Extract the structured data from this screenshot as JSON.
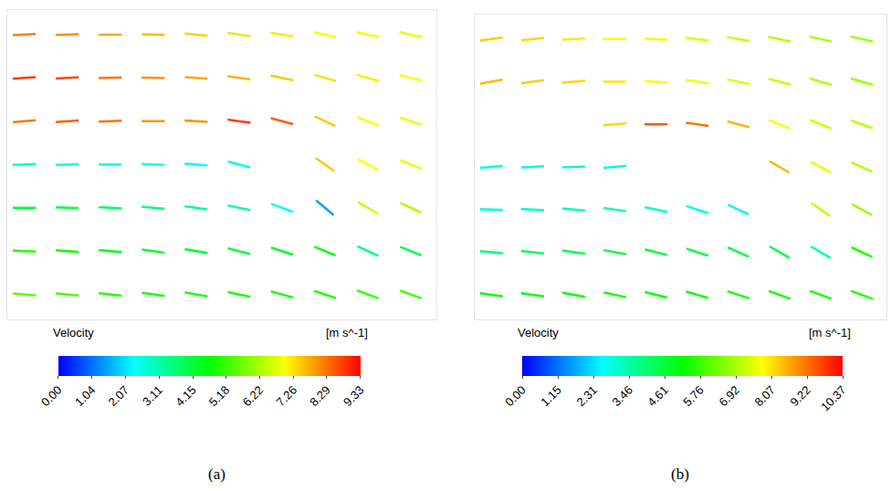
{
  "chart_data": [
    {
      "type": "vector",
      "title": "(a)",
      "tick_labels": false,
      "xlim": [
        0,
        100
      ],
      "ylim": [
        0,
        100
      ],
      "x": [
        4,
        14,
        24,
        34,
        44,
        54,
        64,
        74,
        84,
        94
      ],
      "y": [
        8,
        22,
        36,
        50,
        64,
        78,
        92
      ],
      "speed": [
        [
          5.5,
          5.3,
          5,
          4.9,
          4.8,
          4.8,
          4.9,
          5,
          5.2,
          5.3
        ],
        [
          5,
          4.8,
          4.6,
          4.4,
          4.3,
          4.2,
          4.3,
          4.5,
          3.5,
          4
        ],
        [
          4.2,
          4,
          3.8,
          3.5,
          3.3,
          3,
          2.5,
          1.5,
          6.5,
          6.3
        ],
        [
          2.8,
          2.7,
          2.6,
          2.5,
          2.4,
          2.3,
          null,
          7.5,
          7,
          6.8
        ],
        [
          8.3,
          8.5,
          8.3,
          8,
          8,
          8.8,
          8.5,
          7.5,
          7,
          6.8
        ],
        [
          8.8,
          8.7,
          8.3,
          8,
          7.8,
          7.7,
          7.5,
          7.3,
          7.2,
          7
        ],
        [
          8.2,
          8,
          7.8,
          7.6,
          7.4,
          7.3,
          7.2,
          7,
          6.9,
          6.8
        ]
      ],
      "angle": [
        [
          -5,
          -5,
          -6,
          -8,
          -10,
          -12,
          -15,
          -18,
          -20,
          -20
        ],
        [
          -3,
          -4,
          -5,
          -8,
          -10,
          -14,
          -18,
          -22,
          -25,
          -22
        ],
        [
          0,
          -2,
          -3,
          -5,
          -8,
          -12,
          -20,
          -40,
          -30,
          -25
        ],
        [
          2,
          2,
          0,
          -2,
          -5,
          -15,
          null,
          -35,
          -28,
          -22
        ],
        [
          5,
          4,
          2,
          0,
          -3,
          -8,
          -15,
          -25,
          -22,
          -18
        ],
        [
          4,
          3,
          1,
          -1,
          -4,
          -8,
          -12,
          -16,
          -16,
          -14
        ],
        [
          3,
          2,
          0,
          -2,
          -5,
          -8,
          -10,
          -12,
          -12,
          -12
        ]
      ],
      "bodies": [
        {
          "x": [
            54.6,
            60.4,
            66.7,
            71.9,
            76,
            78.8,
            79.2,
            77.1,
            74,
            69.8,
            64.6,
            59.4,
            55.8
          ],
          "y": [
            56.6,
            57.1,
            54.9,
            50,
            42.9,
            34.3,
            25.1,
            32.9,
            40,
            45.1,
            48.6,
            51.4,
            54.3
          ]
        }
      ],
      "colorbar": {
        "title": "Velocity",
        "unit": "[m s^-1]",
        "range": [
          0,
          9.33
        ],
        "ticks": [
          {
            "value": 0,
            "label": "0.00"
          },
          {
            "value": 1.04,
            "label": "1.04"
          },
          {
            "value": 2.07,
            "label": "2.07"
          },
          {
            "value": 3.11,
            "label": "3.11"
          },
          {
            "value": 4.15,
            "label": "4.15"
          },
          {
            "value": 5.18,
            "label": "5.18"
          },
          {
            "value": 6.22,
            "label": "6.22"
          },
          {
            "value": 7.26,
            "label": "7.26"
          },
          {
            "value": 8.29,
            "label": "8.29"
          },
          {
            "value": 9.33,
            "label": "9.33"
          }
        ]
      }
    },
    {
      "type": "vector",
      "title": "(b)",
      "tick_labels": false,
      "xlim": [
        0,
        100
      ],
      "ylim": [
        0,
        100
      ],
      "x": [
        4,
        14,
        24,
        34,
        44,
        54,
        64,
        74,
        84,
        94
      ],
      "y": [
        8,
        22,
        36,
        50,
        64,
        78,
        92
      ],
      "speed": [
        [
          5,
          5,
          5.1,
          5.2,
          5.3,
          5.3,
          5.4,
          5.4,
          5.5,
          5.6
        ],
        [
          4,
          4.2,
          4.3,
          4.5,
          4.6,
          4.6,
          4.6,
          4.4,
          3.5,
          5.5
        ],
        [
          3,
          3.2,
          3.3,
          3.4,
          3,
          2.8,
          2.5,
          null,
          7.2,
          6.8
        ],
        [
          2.8,
          3,
          3,
          2.5,
          null,
          null,
          null,
          8.5,
          7.5,
          7
        ],
        [
          null,
          null,
          null,
          8.2,
          9.5,
          9.2,
          8.5,
          7.8,
          7.3,
          7
        ],
        [
          8.5,
          8.3,
          8.2,
          8,
          7.8,
          7.6,
          7.4,
          7.2,
          7,
          6.8
        ],
        [
          8.3,
          8.2,
          8,
          7.8,
          7.6,
          7.4,
          7.2,
          7,
          6.9,
          6.8
        ]
      ],
      "angle": [
        [
          -8,
          -8,
          -10,
          -12,
          -14,
          -16,
          -18,
          -20,
          -20,
          -20
        ],
        [
          -5,
          -6,
          -8,
          -10,
          -14,
          -18,
          -24,
          -30,
          -30,
          -25
        ],
        [
          -2,
          -3,
          -5,
          -8,
          -12,
          -18,
          -25,
          null,
          -35,
          -28
        ],
        [
          5,
          3,
          2,
          5,
          null,
          null,
          null,
          -30,
          -28,
          -24
        ],
        [
          null,
          null,
          null,
          5,
          0,
          -8,
          -15,
          -22,
          -22,
          -20
        ],
        [
          10,
          8,
          5,
          0,
          -4,
          -8,
          -12,
          -15,
          -16,
          -16
        ],
        [
          8,
          6,
          3,
          0,
          -3,
          -6,
          -10,
          -12,
          -13,
          -13
        ]
      ],
      "bodies": [
        {
          "x": [
            40.7,
            48.4,
            59.3,
            70.3,
            81.3,
            90.1,
            84.6,
            74.7,
            63.7,
            52.7,
            44
          ],
          "y": [
            52.2,
            55.2,
            54.3,
            47.8,
            34.3,
            17.9,
            22.4,
            35.2,
            43.3,
            46.3,
            47.8
          ]
        },
        {
          "x": [
            0,
            17.6,
            39.6,
            22,
            0
          ],
          "y": [
            74.6,
            67.2,
            59.7,
            62.7,
            56.7
          ]
        }
      ],
      "colorbar": {
        "title": "Velocity",
        "unit": "[m s^-1]",
        "range": [
          0,
          10.37
        ],
        "ticks": [
          {
            "value": 0,
            "label": "0.00"
          },
          {
            "value": 1.15,
            "label": "1.15"
          },
          {
            "value": 2.31,
            "label": "2.31"
          },
          {
            "value": 3.46,
            "label": "3.46"
          },
          {
            "value": 4.61,
            "label": "4.61"
          },
          {
            "value": 5.76,
            "label": "5.76"
          },
          {
            "value": 6.92,
            "label": "6.92"
          },
          {
            "value": 8.07,
            "label": "8.07"
          },
          {
            "value": 9.22,
            "label": "9.22"
          },
          {
            "value": 10.37,
            "label": "10.37"
          }
        ]
      }
    }
  ]
}
